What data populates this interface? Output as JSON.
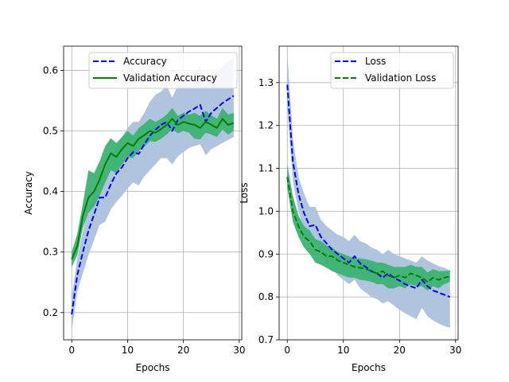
{
  "chart_data": [
    {
      "type": "line",
      "xlabel": "Epochs",
      "ylabel": "Accuracy",
      "xlim": [
        -1.45,
        30.45
      ],
      "ylim": [
        0.155,
        0.64
      ],
      "xticks": [
        0,
        10,
        20,
        30
      ],
      "yticks": [
        0.2,
        0.3,
        0.4,
        0.5,
        0.6
      ],
      "grid": true,
      "legend_position": "top-right",
      "x": [
        0,
        1,
        2,
        3,
        4,
        5,
        6,
        7,
        8,
        9,
        10,
        11,
        12,
        13,
        14,
        15,
        16,
        17,
        18,
        19,
        20,
        21,
        22,
        23,
        24,
        25,
        26,
        27,
        28,
        29
      ],
      "series": [
        {
          "name": "Accuracy",
          "style": "dashed",
          "color": "#0000ff",
          "band_color": "#b0c4de",
          "values": [
            0.197,
            0.262,
            0.3,
            0.335,
            0.362,
            0.39,
            0.39,
            0.412,
            0.43,
            0.44,
            0.455,
            0.465,
            0.462,
            0.478,
            0.492,
            0.502,
            0.51,
            0.515,
            0.5,
            0.518,
            0.525,
            0.532,
            0.537,
            0.543,
            0.515,
            0.53,
            0.538,
            0.546,
            0.552,
            0.558
          ],
          "band_low": [
            0.17,
            0.235,
            0.265,
            0.295,
            0.32,
            0.345,
            0.35,
            0.37,
            0.383,
            0.393,
            0.405,
            0.415,
            0.41,
            0.425,
            0.435,
            0.445,
            0.455,
            0.455,
            0.445,
            0.458,
            0.465,
            0.472,
            0.475,
            0.478,
            0.46,
            0.47,
            0.475,
            0.48,
            0.485,
            0.49
          ],
          "band_high": [
            0.225,
            0.29,
            0.335,
            0.37,
            0.4,
            0.43,
            0.43,
            0.455,
            0.475,
            0.49,
            0.505,
            0.515,
            0.515,
            0.53,
            0.548,
            0.56,
            0.565,
            0.575,
            0.555,
            0.575,
            0.583,
            0.59,
            0.597,
            0.605,
            0.575,
            0.59,
            0.598,
            0.607,
            0.615,
            0.622
          ]
        },
        {
          "name": "Validation Accuracy",
          "style": "solid",
          "color": "#008000",
          "band_color": "#3cb371",
          "values": [
            0.288,
            0.31,
            0.36,
            0.39,
            0.4,
            0.42,
            0.445,
            0.463,
            0.457,
            0.47,
            0.48,
            0.475,
            0.487,
            0.493,
            0.5,
            0.497,
            0.503,
            0.51,
            0.52,
            0.51,
            0.515,
            0.512,
            0.51,
            0.505,
            0.515,
            0.51,
            0.505,
            0.52,
            0.51,
            0.513
          ],
          "band_low": [
            0.275,
            0.295,
            0.34,
            0.365,
            0.375,
            0.393,
            0.415,
            0.435,
            0.43,
            0.445,
            0.457,
            0.455,
            0.467,
            0.474,
            0.483,
            0.482,
            0.487,
            0.494,
            0.503,
            0.496,
            0.5,
            0.497,
            0.487,
            0.486,
            0.497,
            0.494,
            0.49,
            0.502,
            0.494,
            0.5
          ],
          "band_high": [
            0.3,
            0.33,
            0.38,
            0.435,
            0.43,
            0.45,
            0.475,
            0.488,
            0.48,
            0.49,
            0.5,
            0.492,
            0.505,
            0.512,
            0.52,
            0.515,
            0.52,
            0.527,
            0.538,
            0.525,
            0.53,
            0.527,
            0.53,
            0.525,
            0.533,
            0.526,
            0.52,
            0.538,
            0.527,
            0.53
          ]
        }
      ]
    },
    {
      "type": "line",
      "xlabel": "Epochs",
      "ylabel": "Loss",
      "xlim": [
        -1.45,
        30.45
      ],
      "ylim": [
        0.7,
        1.385
      ],
      "xticks": [
        0,
        10,
        20,
        30
      ],
      "yticks": [
        0.7,
        0.8,
        0.9,
        1.0,
        1.1,
        1.2,
        1.3
      ],
      "grid": true,
      "legend_position": "top-right",
      "x": [
        0,
        1,
        2,
        3,
        4,
        5,
        6,
        7,
        8,
        9,
        10,
        11,
        12,
        13,
        14,
        15,
        16,
        17,
        18,
        19,
        20,
        21,
        22,
        23,
        24,
        25,
        26,
        27,
        28,
        29
      ],
      "series": [
        {
          "name": "Loss",
          "style": "dashed",
          "color": "#0000ff",
          "band_color": "#b0c4de",
          "values": [
            1.295,
            1.115,
            1.04,
            0.995,
            0.965,
            0.968,
            0.94,
            0.925,
            0.91,
            0.9,
            0.89,
            0.88,
            0.895,
            0.878,
            0.87,
            0.86,
            0.855,
            0.845,
            0.855,
            0.845,
            0.838,
            0.83,
            0.825,
            0.82,
            0.84,
            0.825,
            0.815,
            0.81,
            0.805,
            0.8
          ],
          "band_low": [
            1.245,
            1.07,
            1.0,
            0.955,
            0.925,
            0.925,
            0.9,
            0.88,
            0.865,
            0.85,
            0.84,
            0.83,
            0.84,
            0.82,
            0.81,
            0.8,
            0.795,
            0.785,
            0.79,
            0.78,
            0.77,
            0.762,
            0.755,
            0.748,
            0.775,
            0.755,
            0.745,
            0.738,
            0.732,
            0.728
          ],
          "band_high": [
            1.37,
            1.17,
            1.08,
            1.04,
            1.01,
            1.01,
            0.98,
            0.965,
            0.955,
            0.945,
            0.94,
            0.93,
            0.945,
            0.93,
            0.925,
            0.915,
            0.91,
            0.9,
            0.91,
            0.9,
            0.895,
            0.89,
            0.885,
            0.88,
            0.895,
            0.885,
            0.878,
            0.872,
            0.868,
            0.862
          ]
        },
        {
          "name": "Validation Loss",
          "style": "dashed",
          "color": "#008000",
          "band_color": "#3cb371",
          "values": [
            1.08,
            1.0,
            0.965,
            0.94,
            0.93,
            0.91,
            0.905,
            0.895,
            0.895,
            0.885,
            0.88,
            0.875,
            0.87,
            0.868,
            0.865,
            0.86,
            0.855,
            0.86,
            0.85,
            0.845,
            0.85,
            0.845,
            0.855,
            0.85,
            0.845,
            0.835,
            0.845,
            0.84,
            0.845,
            0.848
          ],
          "band_low": [
            1.055,
            0.975,
            0.94,
            0.915,
            0.9,
            0.88,
            0.875,
            0.868,
            0.86,
            0.855,
            0.85,
            0.845,
            0.845,
            0.84,
            0.838,
            0.835,
            0.83,
            0.83,
            0.82,
            0.82,
            0.825,
            0.82,
            0.83,
            0.825,
            0.825,
            0.815,
            0.825,
            0.82,
            0.83,
            0.835
          ],
          "band_high": [
            1.11,
            1.035,
            0.99,
            0.965,
            0.955,
            0.935,
            0.93,
            0.92,
            0.915,
            0.905,
            0.9,
            0.895,
            0.89,
            0.89,
            0.888,
            0.885,
            0.88,
            0.88,
            0.875,
            0.87,
            0.87,
            0.87,
            0.875,
            0.87,
            0.87,
            0.857,
            0.865,
            0.86,
            0.86,
            0.862
          ]
        }
      ]
    }
  ]
}
